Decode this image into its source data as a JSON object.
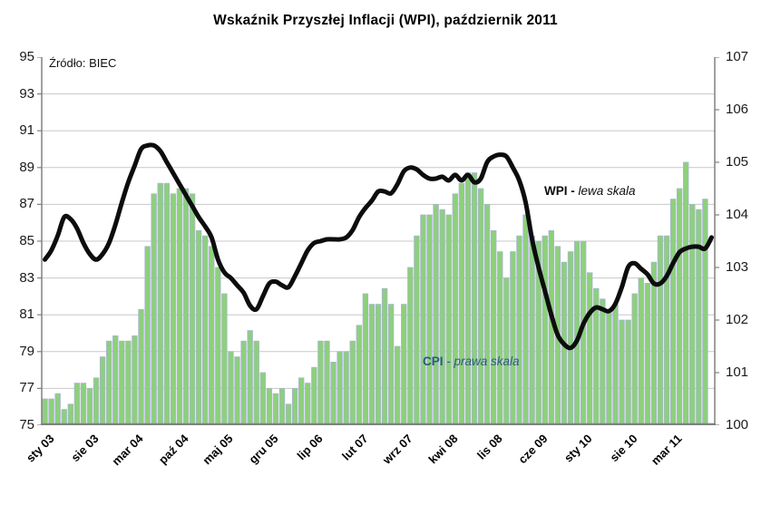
{
  "title": "Wskaźnik Przyszłej Inflacji (WPI),  październik 2011",
  "source_note": "Źródło: BIEC",
  "annotations": {
    "wpi_bold": "WPI - ",
    "wpi_italic": "lewa skala",
    "cpi_bold": "CPI ",
    "cpi_italic": "- prawa skala"
  },
  "colors": {
    "line": "#0d0d0d",
    "bar_fill": "#8dd07c",
    "bar_stroke": "#aab6d3",
    "grid": "#c8c8c8",
    "axis": "#808080",
    "cpi_label": "#2d5b7a"
  },
  "chart_data": {
    "type": "combo",
    "title": "Wskaźnik Przyszłej Inflacji (WPI),  październik 2011",
    "x_axis": {
      "tick_labels": [
        "sty 03",
        "sie 03",
        "mar 04",
        "paź 04",
        "maj 05",
        "gru 05",
        "lip 06",
        "lut 07",
        "wrz 07",
        "kwi 08",
        "lis 08",
        "cze 09",
        "sty 10",
        "sie 10",
        "mar 11"
      ],
      "tick_slot_interval": 7,
      "n_slots": 105
    },
    "left_axis": {
      "label": "WPI - lewa skala",
      "min": 75,
      "max": 95,
      "step": 2,
      "ticks": [
        75,
        77,
        79,
        81,
        83,
        85,
        87,
        89,
        91,
        93,
        95
      ]
    },
    "right_axis": {
      "label": "CPI - prawa skala",
      "min": 100,
      "max": 107,
      "step": 1,
      "ticks": [
        100,
        101,
        102,
        103,
        104,
        105,
        106,
        107
      ]
    },
    "grid": "horizontal, left-axis steps",
    "legend_position": "inline annotations",
    "series": [
      {
        "name": "WPI - lewa skala",
        "type": "line",
        "axis": "left",
        "color": "#0d0d0d",
        "values": [
          84.0,
          84.5,
          85.3,
          86.3,
          86.2,
          85.7,
          84.9,
          84.3,
          84.0,
          84.3,
          84.9,
          85.9,
          87.1,
          88.2,
          89.1,
          90.0,
          90.2,
          90.2,
          89.9,
          89.3,
          88.7,
          88.1,
          87.5,
          86.9,
          86.3,
          85.8,
          85.2,
          84.0,
          83.3,
          83.0,
          82.6,
          82.2,
          81.5,
          81.3,
          82.0,
          82.7,
          82.8,
          82.6,
          82.5,
          83.1,
          83.8,
          84.5,
          84.9,
          85.0,
          85.1,
          85.1,
          85.1,
          85.2,
          85.6,
          86.3,
          86.8,
          87.2,
          87.7,
          87.7,
          87.6,
          88.1,
          88.8,
          89.0,
          88.9,
          88.6,
          88.4,
          88.4,
          88.5,
          88.3,
          88.6,
          88.3,
          88.6,
          88.2,
          88.4,
          89.3,
          89.6,
          89.7,
          89.6,
          89.0,
          88.3,
          87.1,
          85.1,
          83.6,
          82.3,
          81.0,
          79.9,
          79.4,
          79.2,
          79.6,
          80.5,
          81.1,
          81.4,
          81.3,
          81.2,
          81.6,
          82.5,
          83.6,
          83.8,
          83.5,
          83.2,
          82.7,
          82.7,
          83.1,
          83.8,
          84.4,
          84.6,
          84.7,
          84.7,
          84.6,
          85.2
        ]
      },
      {
        "name": "CPI - prawa skala",
        "type": "bar",
        "axis": "right",
        "color": "#8dd07c",
        "values": [
          100.5,
          100.5,
          100.6,
          100.3,
          100.4,
          100.8,
          100.8,
          100.7,
          100.9,
          101.3,
          101.6,
          101.7,
          101.6,
          101.6,
          101.7,
          102.2,
          103.4,
          104.4,
          104.6,
          104.6,
          104.4,
          104.5,
          104.5,
          104.4,
          103.7,
          103.6,
          103.4,
          103.0,
          102.5,
          101.4,
          101.3,
          101.6,
          101.8,
          101.6,
          101.0,
          100.7,
          100.6,
          100.7,
          100.4,
          100.7,
          100.9,
          100.8,
          101.1,
          101.6,
          101.6,
          101.2,
          101.4,
          101.4,
          101.6,
          101.9,
          102.5,
          102.3,
          102.3,
          102.6,
          102.3,
          101.5,
          102.3,
          103.0,
          103.6,
          104.0,
          104.0,
          104.2,
          104.1,
          104.0,
          104.4,
          104.6,
          104.8,
          104.8,
          104.5,
          104.2,
          103.7,
          103.3,
          102.8,
          103.3,
          103.6,
          104.0,
          103.6,
          103.5,
          103.6,
          103.7,
          103.4,
          103.1,
          103.3,
          103.5,
          103.5,
          102.9,
          102.6,
          102.4,
          102.2,
          102.3,
          102.0,
          102.0,
          102.5,
          102.8,
          102.7,
          103.1,
          103.6,
          103.6,
          104.3,
          104.5,
          105.0,
          104.2,
          104.1,
          104.3
        ]
      }
    ]
  }
}
